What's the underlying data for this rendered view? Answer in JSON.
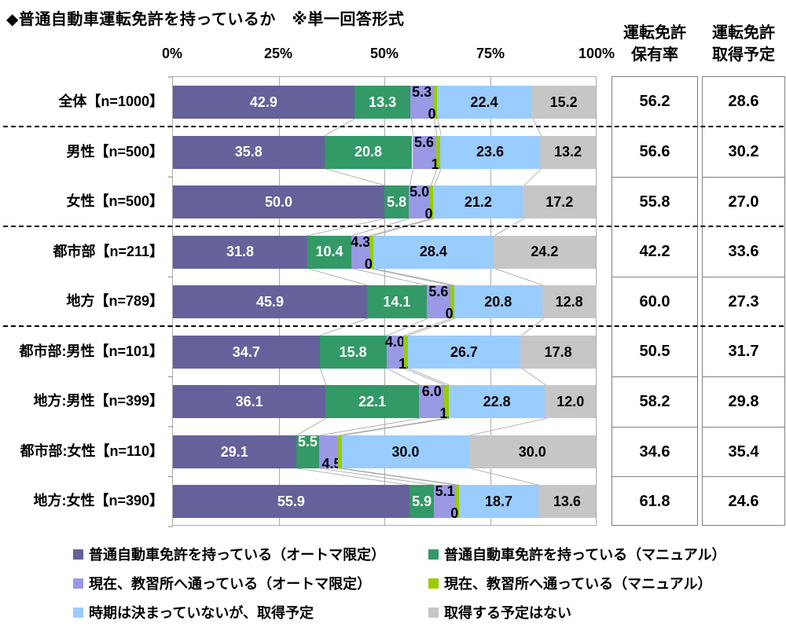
{
  "title": "◆普通自動車運転免許を持っているか　※単一回答形式",
  "axis_ticks": [
    "0%",
    "25%",
    "50%",
    "75%",
    "100%"
  ],
  "series_meta": [
    {
      "label": "普通自動車免許を持っている（オートマ限定）",
      "color": "#64619B",
      "label_color": "#FFFFFF"
    },
    {
      "label": "普通自動車免許を持っている（マニュアル）",
      "color": "#339966",
      "label_color": "#FFFFFF"
    },
    {
      "label": "現在、教習所へ通っている（オートマ限定）",
      "color": "#9999E6",
      "label_color": "#000000"
    },
    {
      "label": "現在、教習所へ通っている（マニュアル）",
      "color": "#99CC00",
      "label_color": "#000000"
    },
    {
      "label": "時期は決まっていないが、取得予定",
      "color": "#99CCFF",
      "label_color": "#000000"
    },
    {
      "label": "取得する予定はない",
      "color": "#C6C6C6",
      "label_color": "#000000"
    }
  ],
  "table_headers": [
    {
      "line1": "運転免許",
      "line2": "保有率"
    },
    {
      "line1": "運転免許",
      "line2": "取得予定"
    }
  ],
  "rows": [
    {
      "category": "全体【n=1000】",
      "values": [
        42.9,
        13.3,
        5.3,
        0.9,
        22.4,
        15.2
      ],
      "label_pos": [
        "center",
        "center",
        "top",
        "bottom",
        "center",
        "center"
      ],
      "license_rate": "56.2",
      "plan_rate": "28.6"
    },
    {
      "category": "男性【n=500】",
      "values": [
        35.8,
        20.8,
        5.6,
        1.0,
        23.6,
        13.2
      ],
      "label_pos": [
        "center",
        "center",
        "top",
        "bottom",
        "center",
        "center"
      ],
      "license_rate": "56.6",
      "plan_rate": "30.2"
    },
    {
      "category": "女性【n=500】",
      "values": [
        50.0,
        5.8,
        5.0,
        0.8,
        21.2,
        17.2
      ],
      "label_pos": [
        "center",
        "center",
        "top",
        "bottom",
        "center",
        "center"
      ],
      "license_rate": "55.8",
      "plan_rate": "27.0"
    },
    {
      "category": "都市部【n=211】",
      "values": [
        31.8,
        10.4,
        4.3,
        0.9,
        28.4,
        24.2
      ],
      "label_pos": [
        "center",
        "center",
        "top",
        "bottom",
        "center",
        "center"
      ],
      "license_rate": "42.2",
      "plan_rate": "33.6"
    },
    {
      "category": "地方【n=789】",
      "values": [
        45.9,
        14.1,
        5.6,
        0.9,
        20.8,
        12.8
      ],
      "label_pos": [
        "center",
        "center",
        "top",
        "bottom",
        "center",
        "center"
      ],
      "license_rate": "60.0",
      "plan_rate": "27.3"
    },
    {
      "category": "都市部:男性【n=101】",
      "values": [
        34.7,
        15.8,
        4.0,
        1.0,
        26.7,
        17.8
      ],
      "label_pos": [
        "center",
        "center",
        "top",
        "bottom",
        "center",
        "center"
      ],
      "license_rate": "50.5",
      "plan_rate": "31.7"
    },
    {
      "category": "地方:男性【n=399】",
      "values": [
        36.1,
        22.1,
        6.0,
        1.0,
        22.8,
        12.0
      ],
      "label_pos": [
        "center",
        "center",
        "top",
        "bottom",
        "center",
        "center"
      ],
      "license_rate": "58.2",
      "plan_rate": "29.8"
    },
    {
      "category": "都市部:女性【n=110】",
      "values": [
        29.1,
        5.5,
        4.5,
        0.9,
        30.0,
        30.0
      ],
      "label_pos": [
        "center",
        "top",
        "bottom",
        "none",
        "center",
        "center"
      ],
      "license_rate": "34.6",
      "plan_rate": "35.4"
    },
    {
      "category": "地方:女性【n=390】",
      "values": [
        55.9,
        5.9,
        5.1,
        0.8,
        18.7,
        13.6
      ],
      "label_pos": [
        "center",
        "center",
        "top",
        "bottom",
        "center",
        "center"
      ],
      "license_rate": "61.8",
      "plan_rate": "24.6"
    }
  ],
  "group_breaks_after": [
    0,
    2,
    4
  ],
  "colors": {
    "grid": "#ABABAB",
    "plot_border": "#ABABAB",
    "table_border": "#7F7F7F",
    "connector": "#ABABAB",
    "separator": "#000000"
  },
  "chart_data": {
    "type": "bar",
    "stacked": true,
    "orientation": "horizontal",
    "title": "◆普通自動車運転免許を持っているか　※単一回答形式",
    "categories": [
      "全体【n=1000】",
      "男性【n=500】",
      "女性【n=500】",
      "都市部【n=211】",
      "地方【n=789】",
      "都市部:男性【n=101】",
      "地方:男性【n=399】",
      "都市部:女性【n=110】",
      "地方:女性【n=390】"
    ],
    "series": [
      {
        "name": "普通自動車免許を持っている（オートマ限定）",
        "values": [
          42.9,
          35.8,
          50.0,
          31.8,
          45.9,
          34.7,
          36.1,
          29.1,
          55.9
        ]
      },
      {
        "name": "普通自動車免許を持っている（マニュアル）",
        "values": [
          13.3,
          20.8,
          5.8,
          10.4,
          14.1,
          15.8,
          22.1,
          5.5,
          5.9
        ]
      },
      {
        "name": "現在、教習所へ通っている（オートマ限定）",
        "values": [
          5.3,
          5.6,
          5.0,
          4.3,
          5.6,
          4.0,
          6.0,
          4.5,
          5.1
        ]
      },
      {
        "name": "現在、教習所へ通っている（マニュアル）",
        "values": [
          0.9,
          1.0,
          0.8,
          0.9,
          0.9,
          1.0,
          1.0,
          0.9,
          0.8
        ]
      },
      {
        "name": "時期は決まっていないが、取得予定",
        "values": [
          22.4,
          23.6,
          21.2,
          28.4,
          20.8,
          26.7,
          22.8,
          30.0,
          18.7
        ]
      },
      {
        "name": "取得する予定はない",
        "values": [
          15.2,
          13.2,
          17.2,
          24.2,
          12.8,
          17.8,
          12.0,
          30.0,
          13.6
        ]
      }
    ],
    "xlim": [
      0,
      100
    ],
    "x_ticks": [
      "0%",
      "25%",
      "50%",
      "75%",
      "100%"
    ],
    "grid": true,
    "legend_position": "bottom",
    "side_table": {
      "columns": [
        "運転免許保有率",
        "運転免許取得予定"
      ],
      "rows": [
        [
          56.2,
          28.6
        ],
        [
          56.6,
          30.2
        ],
        [
          55.8,
          27.0
        ],
        [
          42.2,
          33.6
        ],
        [
          60.0,
          27.3
        ],
        [
          50.5,
          31.7
        ],
        [
          58.2,
          29.8
        ],
        [
          34.6,
          35.4
        ],
        [
          61.8,
          24.6
        ]
      ]
    }
  }
}
